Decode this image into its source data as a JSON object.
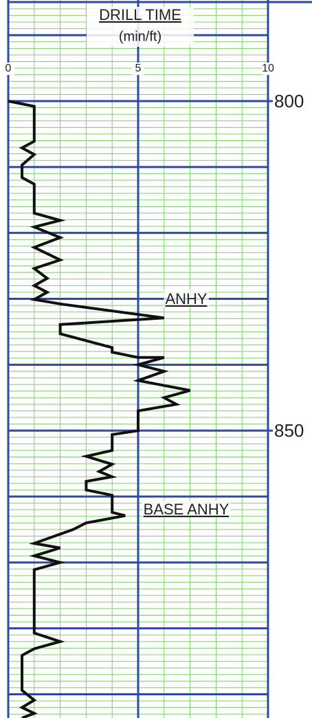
{
  "chart_data": {
    "type": "line",
    "title": "DRILL TIME",
    "subtitle": "(min/ft)",
    "xlim": [
      0,
      10
    ],
    "xticks": [
      0,
      5,
      10
    ],
    "x_minor_step": 1,
    "ylim": [
      784.66,
      893.6
    ],
    "yticks": [
      800,
      850
    ],
    "y_major_grid": [
      790,
      800,
      810,
      820,
      830,
      840,
      850,
      860,
      870,
      880,
      890
    ],
    "y_minor_step": 1,
    "y_inverted": true,
    "grid": true,
    "minor_grid_color": "#7ccf6a",
    "major_grid_color": "#2e4aa0",
    "color": "#111111",
    "annotations": [
      "ANHY",
      "BASE ANHY"
    ],
    "depth": [
      800,
      800.8,
      806.1,
      807.1,
      808.1,
      809.7,
      811.6,
      812.6,
      817.0,
      818.1,
      819.1,
      820.7,
      822.2,
      824.1,
      825.4,
      826.9,
      828.0,
      829.0,
      830.1,
      830.8,
      832.9,
      833.9,
      835.3,
      837.4,
      838.1,
      838.9,
      838.9,
      840.0,
      841.0,
      842.4,
      843.9,
      845.0,
      846.0,
      847.0,
      850.0,
      850.6,
      853.0,
      853.9,
      855.1,
      856.2,
      857.0,
      857.7,
      859.0,
      859.8,
      862.4,
      862.9,
      864.0,
      865.0,
      867.1,
      867.8,
      869.0,
      870.0,
      871.1,
      880.7,
      882.0,
      883.1,
      884.1,
      889.4,
      890.9,
      892.0,
      892.9,
      893.6
    ],
    "values": [
      0,
      1.0,
      1.0,
      0.53,
      1.0,
      0.53,
      0.53,
      1.0,
      1.0,
      2.0,
      1.0,
      2.0,
      1.0,
      2.0,
      1.0,
      1.5,
      1.0,
      1.5,
      1.0,
      2.05,
      6.0,
      2.0,
      2.0,
      4.0,
      4.0,
      5.0,
      6.0,
      5.0,
      6.0,
      5.0,
      7.0,
      6.0,
      6.47,
      5.0,
      5.0,
      4.0,
      4.0,
      3.0,
      4.0,
      3.5,
      4.0,
      3.0,
      3.0,
      4.0,
      4.0,
      4.5,
      3.0,
      2.5,
      1.0,
      2.0,
      1.0,
      2.0,
      1.0,
      1.0,
      2.0,
      1.0,
      0.53,
      0.53,
      1.0,
      0.53,
      1.0,
      0.53
    ]
  }
}
